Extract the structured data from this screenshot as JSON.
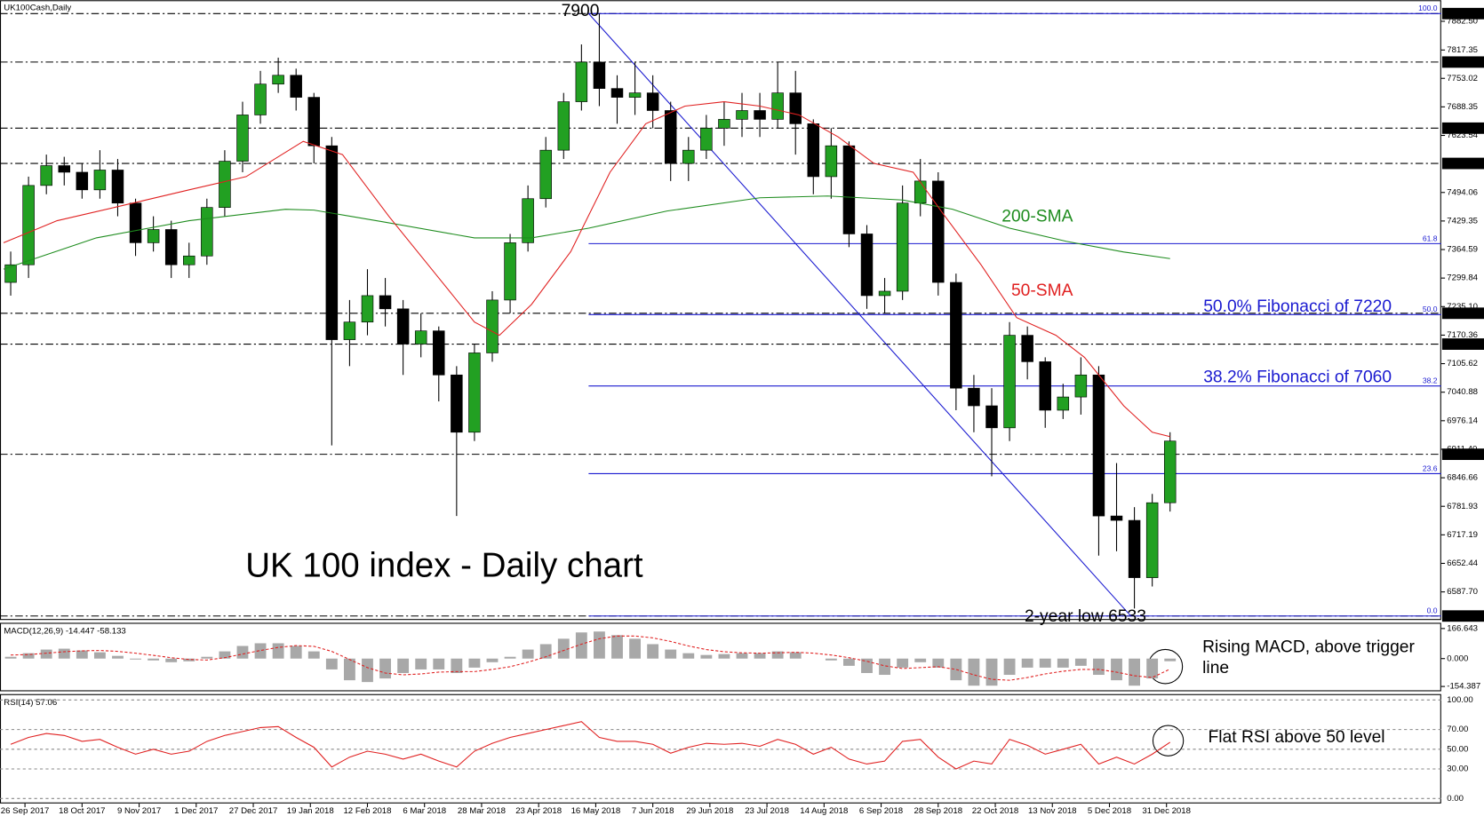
{
  "chart_data": {
    "type": "candlestick",
    "symbol": "UK100Cash,Daily",
    "title": "UK 100 index - Daily chart",
    "up_color": "#22a022",
    "down_color": "#000000",
    "x": [
      -4,
      1,
      6,
      11,
      16,
      21,
      26,
      31,
      36,
      41,
      46,
      51,
      56,
      61,
      66,
      71,
      76,
      81,
      86,
      91,
      96,
      101,
      106,
      111,
      116,
      121,
      126,
      131,
      136,
      141,
      146,
      151,
      156,
      161,
      166,
      171,
      176,
      181,
      186,
      191,
      196,
      201,
      206,
      211,
      216,
      221,
      226,
      231,
      236,
      241,
      246,
      251,
      256,
      261,
      266,
      271,
      276,
      281,
      286,
      291,
      296,
      301,
      306,
      311,
      316,
      321
    ],
    "open": [
      7290,
      7330,
      7510,
      7555,
      7540,
      7500,
      7545,
      7470,
      7380,
      7410,
      7330,
      7350,
      7460,
      7565,
      7670,
      7740,
      7760,
      7710,
      7600,
      7160,
      7200,
      7260,
      7230,
      7150,
      7180,
      7080,
      6950,
      7130,
      7250,
      7380,
      7480,
      7590,
      7700,
      7790,
      7730,
      7710,
      7720,
      7680,
      7560,
      7590,
      7640,
      7660,
      7680,
      7660,
      7720,
      7650,
      7530,
      7600,
      7400,
      7260,
      7270,
      7470,
      7520,
      7290,
      7050,
      7010,
      6960,
      7170,
      7110,
      7000,
      7030,
      7080,
      6760,
      6750,
      6620,
      6790
    ],
    "high": [
      7360,
      7530,
      7580,
      7575,
      7560,
      7590,
      7570,
      7480,
      7440,
      7430,
      7380,
      7480,
      7590,
      7700,
      7770,
      7800,
      7775,
      7720,
      7620,
      7250,
      7320,
      7300,
      7250,
      7220,
      7190,
      7100,
      7150,
      7270,
      7400,
      7510,
      7620,
      7720,
      7830,
      7900,
      7760,
      7790,
      7760,
      7700,
      7620,
      7670,
      7700,
      7720,
      7720,
      7790,
      7770,
      7660,
      7640,
      7610,
      7420,
      7300,
      7510,
      7570,
      7540,
      7310,
      7080,
      7050,
      7200,
      7190,
      7120,
      7060,
      7120,
      7100,
      6880,
      6780,
      6810,
      6950
    ],
    "low": [
      7260,
      7300,
      7490,
      7510,
      7480,
      7480,
      7440,
      7350,
      7360,
      7300,
      7300,
      7330,
      7440,
      7540,
      7650,
      7720,
      7680,
      7560,
      6920,
      7100,
      7170,
      7190,
      7080,
      7120,
      7020,
      6760,
      6930,
      7110,
      7220,
      7360,
      7460,
      7570,
      7680,
      7690,
      7650,
      7670,
      7640,
      7520,
      7520,
      7570,
      7600,
      7620,
      7620,
      7640,
      7580,
      7490,
      7480,
      7370,
      7230,
      7220,
      7250,
      7440,
      7260,
      7000,
      6950,
      6850,
      6930,
      7070,
      6960,
      6980,
      6990,
      6670,
      6680,
      6550,
      6600,
      6770
    ],
    "close": [
      7330,
      7510,
      7555,
      7540,
      7500,
      7545,
      7470,
      7380,
      7410,
      7330,
      7350,
      7460,
      7565,
      7670,
      7740,
      7760,
      7710,
      7600,
      7160,
      7200,
      7260,
      7230,
      7150,
      7180,
      7080,
      6950,
      7130,
      7250,
      7380,
      7480,
      7590,
      7700,
      7790,
      7730,
      7710,
      7720,
      7680,
      7560,
      7590,
      7640,
      7660,
      7680,
      7660,
      7720,
      7650,
      7530,
      7600,
      7400,
      7260,
      7270,
      7470,
      7520,
      7290,
      7050,
      7010,
      6960,
      7170,
      7110,
      7000,
      7030,
      7080,
      6760,
      6750,
      6620,
      6790,
      6930
    ],
    "xlim": [
      -7,
      397
    ],
    "xticks": [
      {
        "value": 0,
        "label": "26 Sep 2017"
      },
      {
        "value": 16,
        "label": "18 Oct 2017"
      },
      {
        "value": 32,
        "label": "9 Nov 2017"
      },
      {
        "value": 48,
        "label": "1 Dec 2017"
      },
      {
        "value": 64,
        "label": "27 Dec 2017"
      },
      {
        "value": 80,
        "label": "19 Jan 2018"
      },
      {
        "value": 96,
        "label": "12 Feb 2018"
      },
      {
        "value": 112,
        "label": "6 Mar 2018"
      },
      {
        "value": 128,
        "label": "28 Mar 2018"
      },
      {
        "value": 144,
        "label": "23 Apr 2018"
      },
      {
        "value": 160,
        "label": "16 May 2018"
      },
      {
        "value": 176,
        "label": "7 Jun 2018"
      },
      {
        "value": 192,
        "label": "29 Jun 2018"
      },
      {
        "value": 208,
        "label": "23 Jul 2018"
      },
      {
        "value": 224,
        "label": "14 Aug 2018"
      },
      {
        "value": 240,
        "label": "6 Sep 2018"
      },
      {
        "value": 256,
        "label": "28 Sep 2018"
      },
      {
        "value": 272,
        "label": "22 Oct 2018"
      },
      {
        "value": 288,
        "label": "13 Nov 2018"
      },
      {
        "value": 304,
        "label": "5 Dec 2018"
      },
      {
        "value": 320,
        "label": "31 Dec 2018"
      }
    ],
    "ylim": [
      6524,
      7926
    ],
    "yticks": [
      {
        "value": 7882.5,
        "label": "7882.50"
      },
      {
        "value": 7817.35,
        "label": "7817.35"
      },
      {
        "value": 7753.02,
        "label": "7753.02"
      },
      {
        "value": 7688.35,
        "label": "7688.35"
      },
      {
        "value": 7623.54,
        "label": "7623.54"
      },
      {
        "value": 7494.06,
        "label": "7494.06"
      },
      {
        "value": 7429.35,
        "label": "7429.35"
      },
      {
        "value": 7364.59,
        "label": "7364.59"
      },
      {
        "value": 7299.84,
        "label": "7299.84"
      },
      {
        "value": 7235.1,
        "label": "7235.10"
      },
      {
        "value": 7170.36,
        "label": "7170.36"
      },
      {
        "value": 7105.62,
        "label": "7105.62"
      },
      {
        "value": 7040.88,
        "label": "7040.88"
      },
      {
        "value": 6976.14,
        "label": "6976.14"
      },
      {
        "value": 6911.4,
        "label": "6911.40"
      },
      {
        "value": 6846.66,
        "label": "6846.66"
      },
      {
        "value": 6781.93,
        "label": "6781.93"
      },
      {
        "value": 6717.19,
        "label": "6717.19"
      },
      {
        "value": 6652.44,
        "label": "6652.44"
      },
      {
        "value": 6587.7,
        "label": "6587.70"
      }
    ],
    "levels": [
      {
        "value": 7900,
        "label": "7900.00"
      },
      {
        "value": 7790,
        "label": "7790.00"
      },
      {
        "value": 7640,
        "label": "7640.00"
      },
      {
        "value": 7560,
        "label": "7560.00"
      },
      {
        "value": 7220,
        "label": "7220.00"
      },
      {
        "value": 7150,
        "label": "7150.00"
      },
      {
        "value": 6900,
        "label": "6900.00"
      },
      {
        "value": 6533,
        "label": "6533.00"
      }
    ],
    "fibonacci_color": "#1a1ad0",
    "fibonacci": [
      {
        "value": 7900,
        "label": "100.0"
      },
      {
        "value": 7378,
        "label": "61.8"
      },
      {
        "value": 7217,
        "label": "50.0"
      },
      {
        "value": 7055,
        "label": "38.2"
      },
      {
        "value": 6856,
        "label": "23.6"
      },
      {
        "value": 6533,
        "label": "0.0"
      }
    ],
    "trendline": {
      "x": [
        158,
        310
      ],
      "values": [
        7900,
        6533
      ]
    },
    "sma": [
      {
        "name": "200-SMA",
        "color": "#1e8c1e",
        "x": [
          -6,
          20,
          46,
          73,
          81,
          100,
          126,
          142,
          158,
          180,
          206,
          225,
          246,
          260,
          276,
          292,
          308,
          321
        ],
        "values": [
          7320,
          7391,
          7430,
          7456,
          7454,
          7428,
          7391,
          7391,
          7413,
          7452,
          7482,
          7486,
          7477,
          7456,
          7413,
          7383,
          7359,
          7344
        ]
      },
      {
        "name": "50-SMA",
        "color": "#e02020",
        "x": [
          -6,
          9,
          25,
          46,
          62,
          78,
          89,
          102,
          116,
          126,
          133,
          142,
          153,
          164,
          174,
          185,
          196,
          206,
          217,
          228,
          238,
          249,
          257,
          268,
          278,
          289,
          297,
          308,
          316,
          321
        ],
        "values": [
          7380,
          7430,
          7460,
          7500,
          7530,
          7610,
          7580,
          7440,
          7300,
          7200,
          7170,
          7240,
          7360,
          7540,
          7650,
          7690,
          7700,
          7690,
          7670,
          7620,
          7560,
          7540,
          7450,
          7330,
          7210,
          7170,
          7120,
          7010,
          6950,
          6940
        ]
      }
    ],
    "annotations": [
      {
        "text": "7900",
        "color": "#000000"
      },
      {
        "text": "50.0% Fibonacci of 7220",
        "color": "#1a1ad0"
      },
      {
        "text": "38.2% Fibonacci of 7060",
        "color": "#1a1ad0"
      },
      {
        "text": "2-year low 6533",
        "color": "#000000"
      }
    ],
    "macd": {
      "title": "MACD(12,26,9) -14.447 -58.133",
      "color": "#a8a8a8",
      "signal_color": "#e02020",
      "values": [
        10,
        30,
        50,
        55,
        45,
        35,
        15,
        -5,
        -10,
        -20,
        -15,
        10,
        40,
        70,
        85,
        85,
        70,
        40,
        -60,
        -120,
        -130,
        -110,
        -80,
        -60,
        -60,
        -80,
        -50,
        -20,
        10,
        50,
        80,
        110,
        145,
        150,
        130,
        110,
        80,
        50,
        30,
        20,
        25,
        30,
        30,
        40,
        35,
        0,
        -10,
        -40,
        -80,
        -90,
        -50,
        -20,
        -50,
        -120,
        -150,
        -150,
        -90,
        -50,
        -50,
        -50,
        -40,
        -90,
        -120,
        -150,
        -110,
        -14.447
      ],
      "signal": [
        20,
        22,
        30,
        38,
        43,
        45,
        40,
        30,
        18,
        5,
        -5,
        -8,
        5,
        25,
        45,
        62,
        72,
        68,
        40,
        -5,
        -50,
        -80,
        -90,
        -85,
        -75,
        -72,
        -72,
        -60,
        -45,
        -20,
        10,
        45,
        80,
        110,
        125,
        125,
        115,
        95,
        70,
        50,
        38,
        32,
        30,
        32,
        35,
        30,
        20,
        5,
        -15,
        -40,
        -55,
        -50,
        -45,
        -60,
        -90,
        -115,
        -120,
        -105,
        -85,
        -70,
        -60,
        -60,
        -75,
        -95,
        -105,
        -58.133
      ],
      "ylim": [
        -181,
        193
      ],
      "yticks": [
        {
          "value": 166.643,
          "label": "166.643"
        },
        {
          "value": 0,
          "label": "0.000"
        },
        {
          "value": -154.387,
          "label": "-154.387"
        }
      ],
      "annotation": "Rising MACD, above trigger line"
    },
    "rsi": {
      "title": "RSI(14) 57.06",
      "color": "#e02020",
      "values": [
        55,
        62,
        66,
        64,
        58,
        60,
        52,
        45,
        50,
        45,
        48,
        58,
        64,
        68,
        72,
        73,
        62,
        52,
        32,
        42,
        48,
        45,
        40,
        45,
        38,
        32,
        48,
        56,
        62,
        66,
        70,
        74,
        78,
        62,
        58,
        58,
        55,
        46,
        52,
        56,
        55,
        56,
        53,
        60,
        55,
        45,
        52,
        40,
        35,
        38,
        58,
        60,
        42,
        30,
        38,
        35,
        60,
        54,
        45,
        50,
        55,
        35,
        42,
        35,
        45,
        57.06
      ],
      "ylim": [
        -5,
        105
      ],
      "yticks": [
        {
          "value": 100,
          "label": "100.00"
        },
        {
          "value": 70,
          "label": "70.00"
        },
        {
          "value": 50,
          "label": "50.00"
        },
        {
          "value": 30,
          "label": "30.00"
        },
        {
          "value": 0,
          "label": "0.00"
        }
      ],
      "annotation": "Flat RSI above 50 level"
    }
  }
}
